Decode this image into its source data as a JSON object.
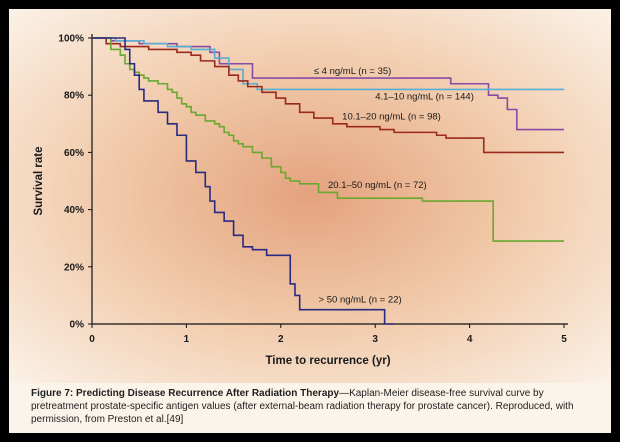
{
  "chart_data": {
    "type": "line",
    "step": true,
    "xlabel": "Time to recurrence (yr)",
    "ylabel": "Survival rate",
    "xlim": [
      0,
      5
    ],
    "ylim": [
      0,
      100
    ],
    "xticks": [
      0,
      1,
      2,
      3,
      4,
      5
    ],
    "yticks": [
      0,
      20,
      40,
      60,
      80,
      100
    ],
    "ytick_labels": [
      "0%",
      "20%",
      "40%",
      "60%",
      "80%",
      "100%"
    ],
    "series": [
      {
        "name": "≤ 4 ng/mL (n = 35)",
        "color": "#8b4aa3",
        "x": [
          0,
          0.2,
          0.5,
          0.9,
          1.25,
          1.35,
          1.7,
          2.2,
          3.8,
          4.2,
          4.3,
          4.4,
          4.5,
          5.0
        ],
        "y": [
          100,
          99,
          98,
          97,
          95,
          91,
          86,
          86,
          84,
          80,
          79,
          75,
          68,
          68
        ]
      },
      {
        "name": "4.1–10 ng/mL (n = 144)",
        "color": "#5aaed4",
        "x": [
          0,
          0.25,
          0.55,
          0.8,
          1.05,
          1.3,
          1.45,
          1.6,
          1.75,
          5.0
        ],
        "y": [
          100,
          99,
          98,
          97,
          96,
          93,
          89,
          84,
          82,
          82
        ]
      },
      {
        "name": "10.1–20 ng/mL (n = 98)",
        "color": "#9a2a1a",
        "x": [
          0,
          0.15,
          0.3,
          0.6,
          0.9,
          1.05,
          1.15,
          1.3,
          1.45,
          1.55,
          1.65,
          1.8,
          1.95,
          2.05,
          2.2,
          2.35,
          2.55,
          2.7,
          3.05,
          3.2,
          3.4,
          3.65,
          3.75,
          4.15,
          5.0
        ],
        "y": [
          100,
          98,
          97,
          96,
          95,
          94,
          92,
          90,
          87,
          85,
          83,
          81,
          79,
          77,
          74,
          72,
          70,
          69,
          68,
          67,
          67,
          66,
          65,
          60,
          60
        ]
      },
      {
        "name": "20.1–50 ng/mL (n = 72)",
        "color": "#6aa830",
        "x": [
          0,
          0.2,
          0.3,
          0.35,
          0.4,
          0.45,
          0.5,
          0.55,
          0.6,
          0.7,
          0.8,
          0.85,
          0.9,
          0.95,
          1.0,
          1.05,
          1.1,
          1.2,
          1.3,
          1.35,
          1.4,
          1.45,
          1.5,
          1.55,
          1.6,
          1.7,
          1.8,
          1.9,
          2.0,
          2.05,
          2.1,
          2.2,
          2.4,
          2.6,
          2.9,
          3.3,
          3.5,
          4.25,
          5.0
        ],
        "y": [
          100,
          96,
          94,
          91,
          89,
          88,
          87,
          86,
          85,
          84,
          82,
          81,
          79,
          77,
          76,
          74,
          73,
          71,
          70,
          69,
          67,
          66,
          64,
          63,
          62,
          60,
          58,
          55,
          53,
          51,
          50,
          49,
          46,
          44,
          44,
          44,
          43,
          29,
          29
        ]
      },
      {
        "name": "> 50 ng/mL (n = 22)",
        "color": "#2a2a80",
        "x": [
          0,
          0.35,
          0.4,
          0.45,
          0.5,
          0.55,
          0.65,
          0.7,
          0.8,
          0.9,
          1.0,
          1.1,
          1.2,
          1.25,
          1.3,
          1.4,
          1.5,
          1.6,
          1.7,
          1.85,
          2.1,
          2.15,
          2.2,
          2.35,
          3.1,
          3.2
        ],
        "y": [
          100,
          96,
          91,
          87,
          82,
          78,
          78,
          74,
          70,
          66,
          57,
          53,
          48,
          43,
          39,
          36,
          31,
          27,
          26,
          24,
          14,
          10,
          5,
          5,
          0,
          0
        ]
      }
    ],
    "series_labels_at": [
      {
        "series": 0,
        "x": 2.35,
        "y": 87.5
      },
      {
        "series": 1,
        "x": 3.0,
        "y": 78.5
      },
      {
        "series": 2,
        "x": 2.65,
        "y": 71.5
      },
      {
        "series": 3,
        "x": 2.5,
        "y": 47.5
      },
      {
        "series": 4,
        "x": 2.4,
        "y": 7.5
      }
    ]
  },
  "caption": {
    "title": "Figure 7: Predicting Disease Recurrence After Radiation Therapy",
    "body": "—Kaplan-Meier disease-free survival curve by pretreatment prostate-specific antigen values (after external-beam radiation therapy for prostate cancer). Reproduced, with permission, from Preston et al.[49]"
  }
}
